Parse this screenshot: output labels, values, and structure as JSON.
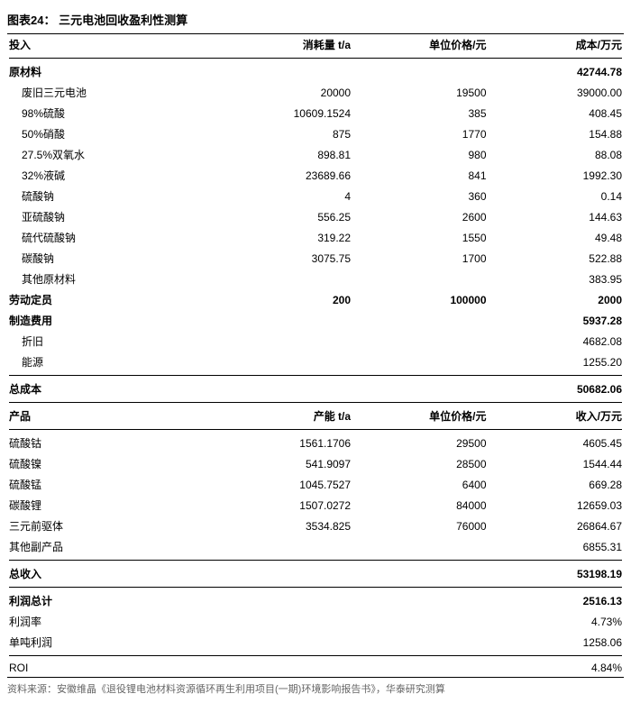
{
  "title": "图表24：  三元电池回收盈利性测算",
  "header1": {
    "input": "投入",
    "qty": "消耗量 t/a",
    "price": "单位价格/元",
    "cost": "成本/万元"
  },
  "raw_header": {
    "label": "原材料",
    "total": "42744.78"
  },
  "raw": [
    {
      "label": "废旧三元电池",
      "qty": "20000",
      "price": "19500",
      "cost": "39000.00"
    },
    {
      "label": "98%硫酸",
      "qty": "10609.1524",
      "price": "385",
      "cost": "408.45"
    },
    {
      "label": "50%硝酸",
      "qty": "875",
      "price": "1770",
      "cost": "154.88"
    },
    {
      "label": "27.5%双氧水",
      "qty": "898.81",
      "price": "980",
      "cost": "88.08"
    },
    {
      "label": "32%液碱",
      "qty": "23689.66",
      "price": "841",
      "cost": "1992.30"
    },
    {
      "label": "硫酸钠",
      "qty": "4",
      "price": "360",
      "cost": "0.14"
    },
    {
      "label": "亚硫酸钠",
      "qty": "556.25",
      "price": "2600",
      "cost": "144.63"
    },
    {
      "label": "硫代硫酸钠",
      "qty": "319.22",
      "price": "1550",
      "cost": "49.48"
    },
    {
      "label": "碳酸钠",
      "qty": "3075.75",
      "price": "1700",
      "cost": "522.88"
    },
    {
      "label": "其他原材料",
      "qty": "",
      "price": "",
      "cost": "383.95"
    }
  ],
  "labor": {
    "label": "劳动定员",
    "qty": "200",
    "price": "100000",
    "cost": "2000"
  },
  "mfg_header": {
    "label": "制造费用",
    "cost": "5937.28"
  },
  "mfg": [
    {
      "label": "折旧",
      "cost": "4682.08"
    },
    {
      "label": "能源",
      "cost": "1255.20"
    }
  ],
  "total_cost": {
    "label": "总成本",
    "cost": "50682.06"
  },
  "header2": {
    "product": "产品",
    "cap": "产能 t/a",
    "price": "单位价格/元",
    "rev": "收入/万元"
  },
  "prod": [
    {
      "label": "硫酸钴",
      "cap": "1561.1706",
      "price": "29500",
      "rev": "4605.45"
    },
    {
      "label": "硫酸镍",
      "cap": "541.9097",
      "price": "28500",
      "rev": "1544.44"
    },
    {
      "label": "硫酸锰",
      "cap": "1045.7527",
      "price": "6400",
      "rev": "669.28"
    },
    {
      "label": "碳酸锂",
      "cap": "1507.0272",
      "price": "84000",
      "rev": "12659.03"
    },
    {
      "label": "三元前驱体",
      "cap": "3534.825",
      "price": "76000",
      "rev": "26864.67"
    },
    {
      "label": "其他副产品",
      "cap": "",
      "price": "",
      "rev": "6855.31"
    }
  ],
  "total_rev": {
    "label": "总收入",
    "rev": "53198.19"
  },
  "profit": {
    "label": "利润总计",
    "val": "2516.13"
  },
  "margin": {
    "label": "利润率",
    "val": "4.73%"
  },
  "pertonne": {
    "label": "单吨利润",
    "val": "1258.06"
  },
  "roi": {
    "label": "ROI",
    "val": "4.84%"
  },
  "source": "资料来源：安徽维晶《退役锂电池材料资源循环再生利用项目(一期)环境影响报告书》，华泰研究测算"
}
